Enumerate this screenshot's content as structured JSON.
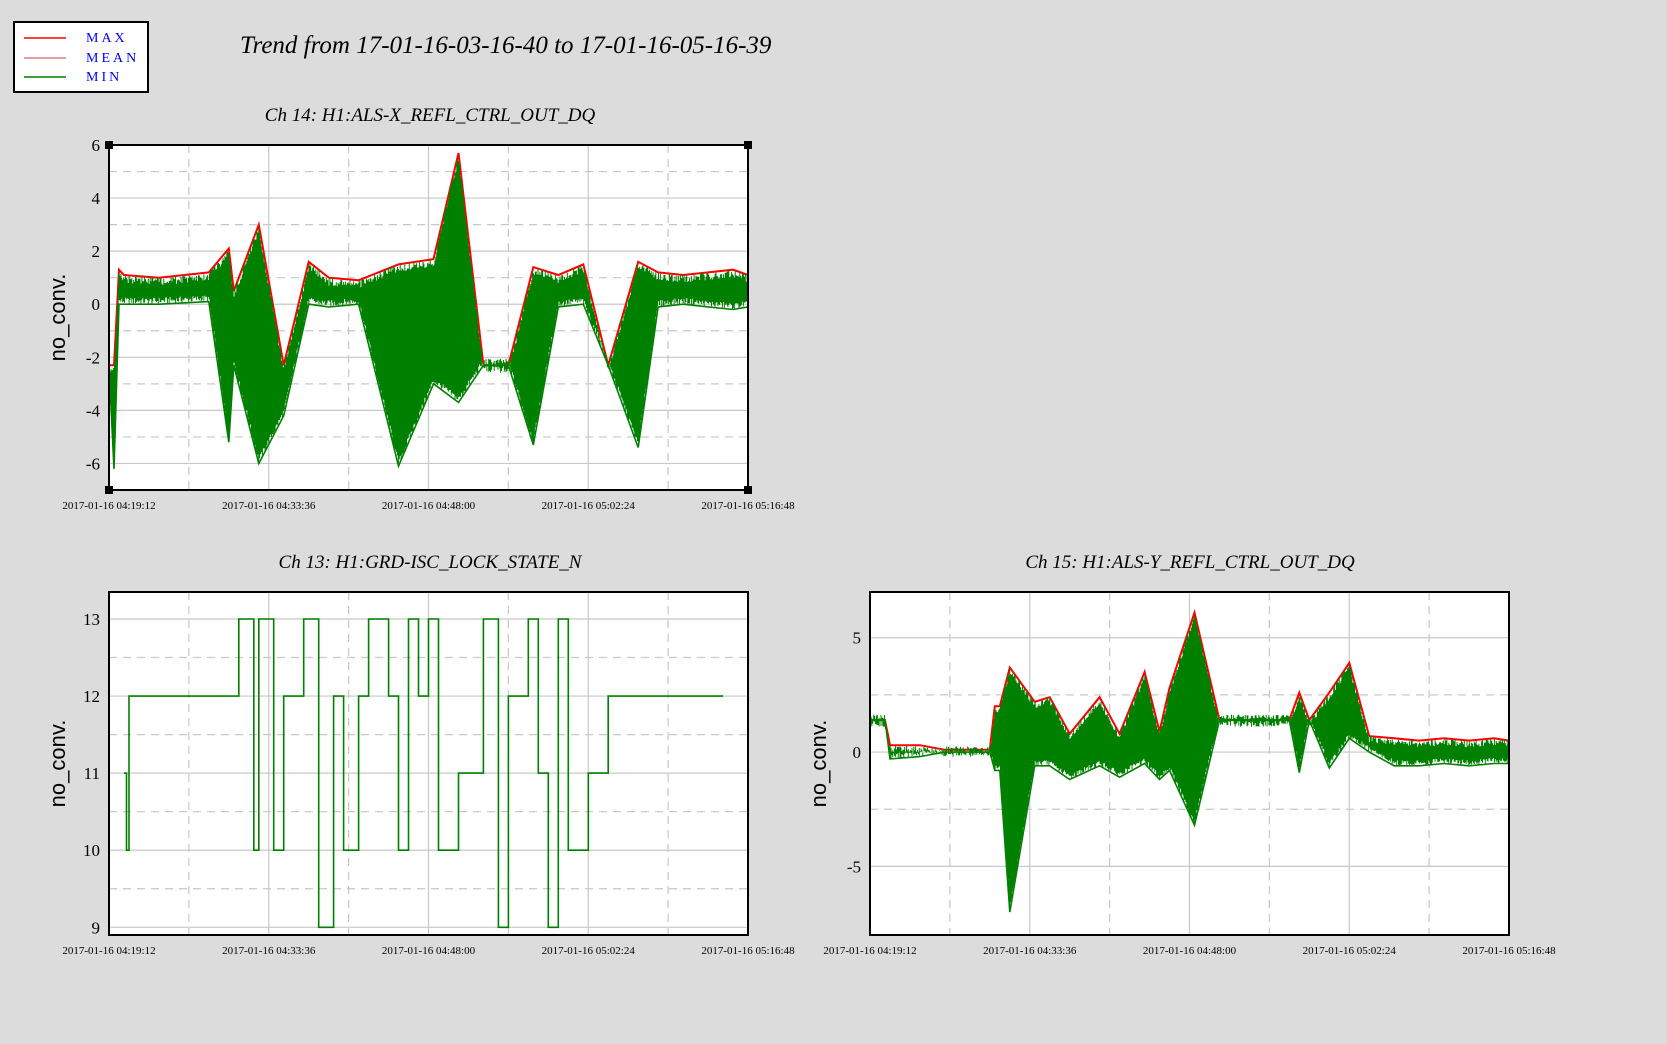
{
  "main_title": "Trend from 17-01-16-03-16-40 to 17-01-16-05-16-39",
  "legend": [
    {
      "label": "MAX",
      "color": "#ff0000"
    },
    {
      "label": "MEAN",
      "color": "#d98080"
    },
    {
      "label": "MIN",
      "color": "#008000"
    }
  ],
  "colors": {
    "max": "#ff0000",
    "mean": "#d98080",
    "min": "#008000",
    "background": "#dcdcdc",
    "grid": "#c8c8c8"
  },
  "x_tick_labels": [
    "2017-01-16 04:19:12",
    "2017-01-16 04:33:36",
    "2017-01-16 04:48:00",
    "2017-01-16 05:02:24",
    "2017-01-16 05:16:48"
  ],
  "chart_data": [
    {
      "id": "ch14",
      "type": "line",
      "title": "Ch 14: H1:ALS-X_REFL_CTRL_OUT_DQ",
      "ylabel": "no_conv.",
      "xlabel": "",
      "x_range": [
        "2017-01-16 04:19:12",
        "2017-01-16 05:16:48"
      ],
      "ylim": [
        -7,
        6
      ],
      "yticks": [
        -6,
        -4,
        -2,
        0,
        2,
        4,
        6
      ],
      "grid": true,
      "series": [
        {
          "name": "MAX",
          "color": "#ff0000",
          "x_minutes": [
            0,
            1,
            2,
            3,
            10,
            20,
            24,
            25,
            30,
            35,
            40,
            44,
            50,
            58,
            65,
            70,
            75,
            80,
            85,
            90,
            95,
            100,
            106,
            110,
            115,
            120,
            125,
            128
          ],
          "values": [
            -2.3,
            -2.3,
            1.3,
            1.1,
            1.0,
            1.2,
            2.1,
            0.5,
            3.0,
            -2.3,
            1.6,
            1.0,
            0.9,
            1.5,
            1.7,
            5.7,
            -2.3,
            -2.3,
            1.4,
            1.1,
            1.5,
            -2.3,
            1.6,
            1.2,
            1.1,
            1.2,
            1.3,
            1.1
          ]
        },
        {
          "name": "MIN",
          "color": "#008000",
          "x_minutes": [
            0,
            1,
            2,
            3,
            10,
            20,
            24,
            25,
            30,
            35,
            40,
            44,
            50,
            58,
            65,
            70,
            75,
            80,
            85,
            90,
            95,
            100,
            106,
            110,
            115,
            120,
            125,
            128
          ],
          "values": [
            -2.3,
            -6.2,
            0.0,
            0.0,
            0.0,
            0.1,
            -5.2,
            -2.3,
            -6.0,
            -4.2,
            0.0,
            -0.1,
            0.0,
            -6.1,
            -3.0,
            -3.7,
            -2.3,
            -2.3,
            -5.3,
            -0.1,
            0.0,
            -2.3,
            -5.4,
            -0.1,
            0.0,
            -0.1,
            -0.2,
            -0.1
          ]
        }
      ]
    },
    {
      "id": "ch13",
      "type": "line",
      "title": "Ch 13: H1:GRD-ISC_LOCK_STATE_N",
      "ylabel": "no_conv.",
      "xlabel": "",
      "x_range": [
        "2017-01-16 04:19:12",
        "2017-01-16 05:16:48"
      ],
      "ylim": [
        8.9,
        13.35
      ],
      "yticks": [
        9,
        10,
        11,
        12,
        13
      ],
      "grid": true,
      "series": [
        {
          "name": "MIN",
          "color": "#008000",
          "x_minutes": [
            3,
            3.5,
            4,
            5,
            25,
            26,
            27,
            29,
            30,
            33,
            35,
            37,
            39,
            42,
            45,
            47,
            50,
            52,
            56,
            58,
            60,
            62,
            64,
            66,
            70,
            72,
            75,
            78,
            80,
            84,
            86,
            88,
            90,
            92,
            96,
            98,
            100,
            103,
            107,
            110,
            123
          ],
          "values": [
            11,
            10,
            12,
            12,
            12,
            13,
            13,
            10,
            13,
            10,
            12,
            12,
            13,
            9,
            12,
            10,
            12,
            13,
            12,
            10,
            13,
            12,
            13,
            10,
            11,
            11,
            13,
            9,
            12,
            13,
            11,
            9,
            13,
            10,
            11,
            11,
            12,
            12,
            12,
            12,
            12
          ]
        }
      ]
    },
    {
      "id": "ch15",
      "type": "line",
      "title": "Ch 15: H1:ALS-Y_REFL_CTRL_OUT_DQ",
      "ylabel": "no_conv.",
      "xlabel": "",
      "x_range": [
        "2017-01-16 04:19:12",
        "2017-01-16 05:16:48"
      ],
      "ylim": [
        -8,
        7
      ],
      "yticks": [
        -5,
        0,
        5
      ],
      "grid": true,
      "series": [
        {
          "name": "MAX",
          "color": "#ff0000",
          "x_minutes": [
            0,
            3,
            4,
            10,
            15,
            24,
            25,
            26,
            28,
            33,
            36,
            40,
            46,
            50,
            55,
            58,
            60,
            65,
            70,
            72,
            75,
            78,
            84,
            86,
            88,
            92,
            96,
            100,
            105,
            110,
            115,
            120,
            125,
            128
          ],
          "values": [
            1.4,
            1.4,
            0.3,
            0.3,
            0.1,
            0.1,
            2.0,
            2.0,
            3.7,
            2.2,
            2.4,
            0.8,
            2.4,
            0.8,
            3.5,
            0.9,
            2.8,
            6.1,
            1.4,
            1.4,
            1.4,
            1.4,
            1.4,
            2.6,
            1.4,
            2.6,
            3.9,
            0.7,
            0.6,
            0.5,
            0.6,
            0.5,
            0.6,
            0.5
          ]
        },
        {
          "name": "MIN",
          "color": "#008000",
          "x_minutes": [
            0,
            3,
            4,
            10,
            15,
            24,
            25,
            26,
            28,
            33,
            36,
            40,
            46,
            50,
            55,
            58,
            60,
            65,
            70,
            72,
            75,
            78,
            84,
            86,
            88,
            92,
            96,
            100,
            105,
            110,
            115,
            120,
            125,
            128
          ],
          "values": [
            1.4,
            1.4,
            -0.3,
            -0.2,
            0.0,
            0.0,
            -0.8,
            -0.8,
            -7.0,
            -0.6,
            -0.6,
            -1.2,
            -0.6,
            -1.1,
            -0.5,
            -1.2,
            -0.8,
            -3.2,
            1.4,
            1.4,
            1.4,
            1.4,
            1.4,
            -0.9,
            1.4,
            -0.7,
            0.6,
            0.0,
            -0.6,
            -0.6,
            -0.5,
            -0.6,
            -0.5,
            -0.5
          ]
        }
      ]
    }
  ]
}
